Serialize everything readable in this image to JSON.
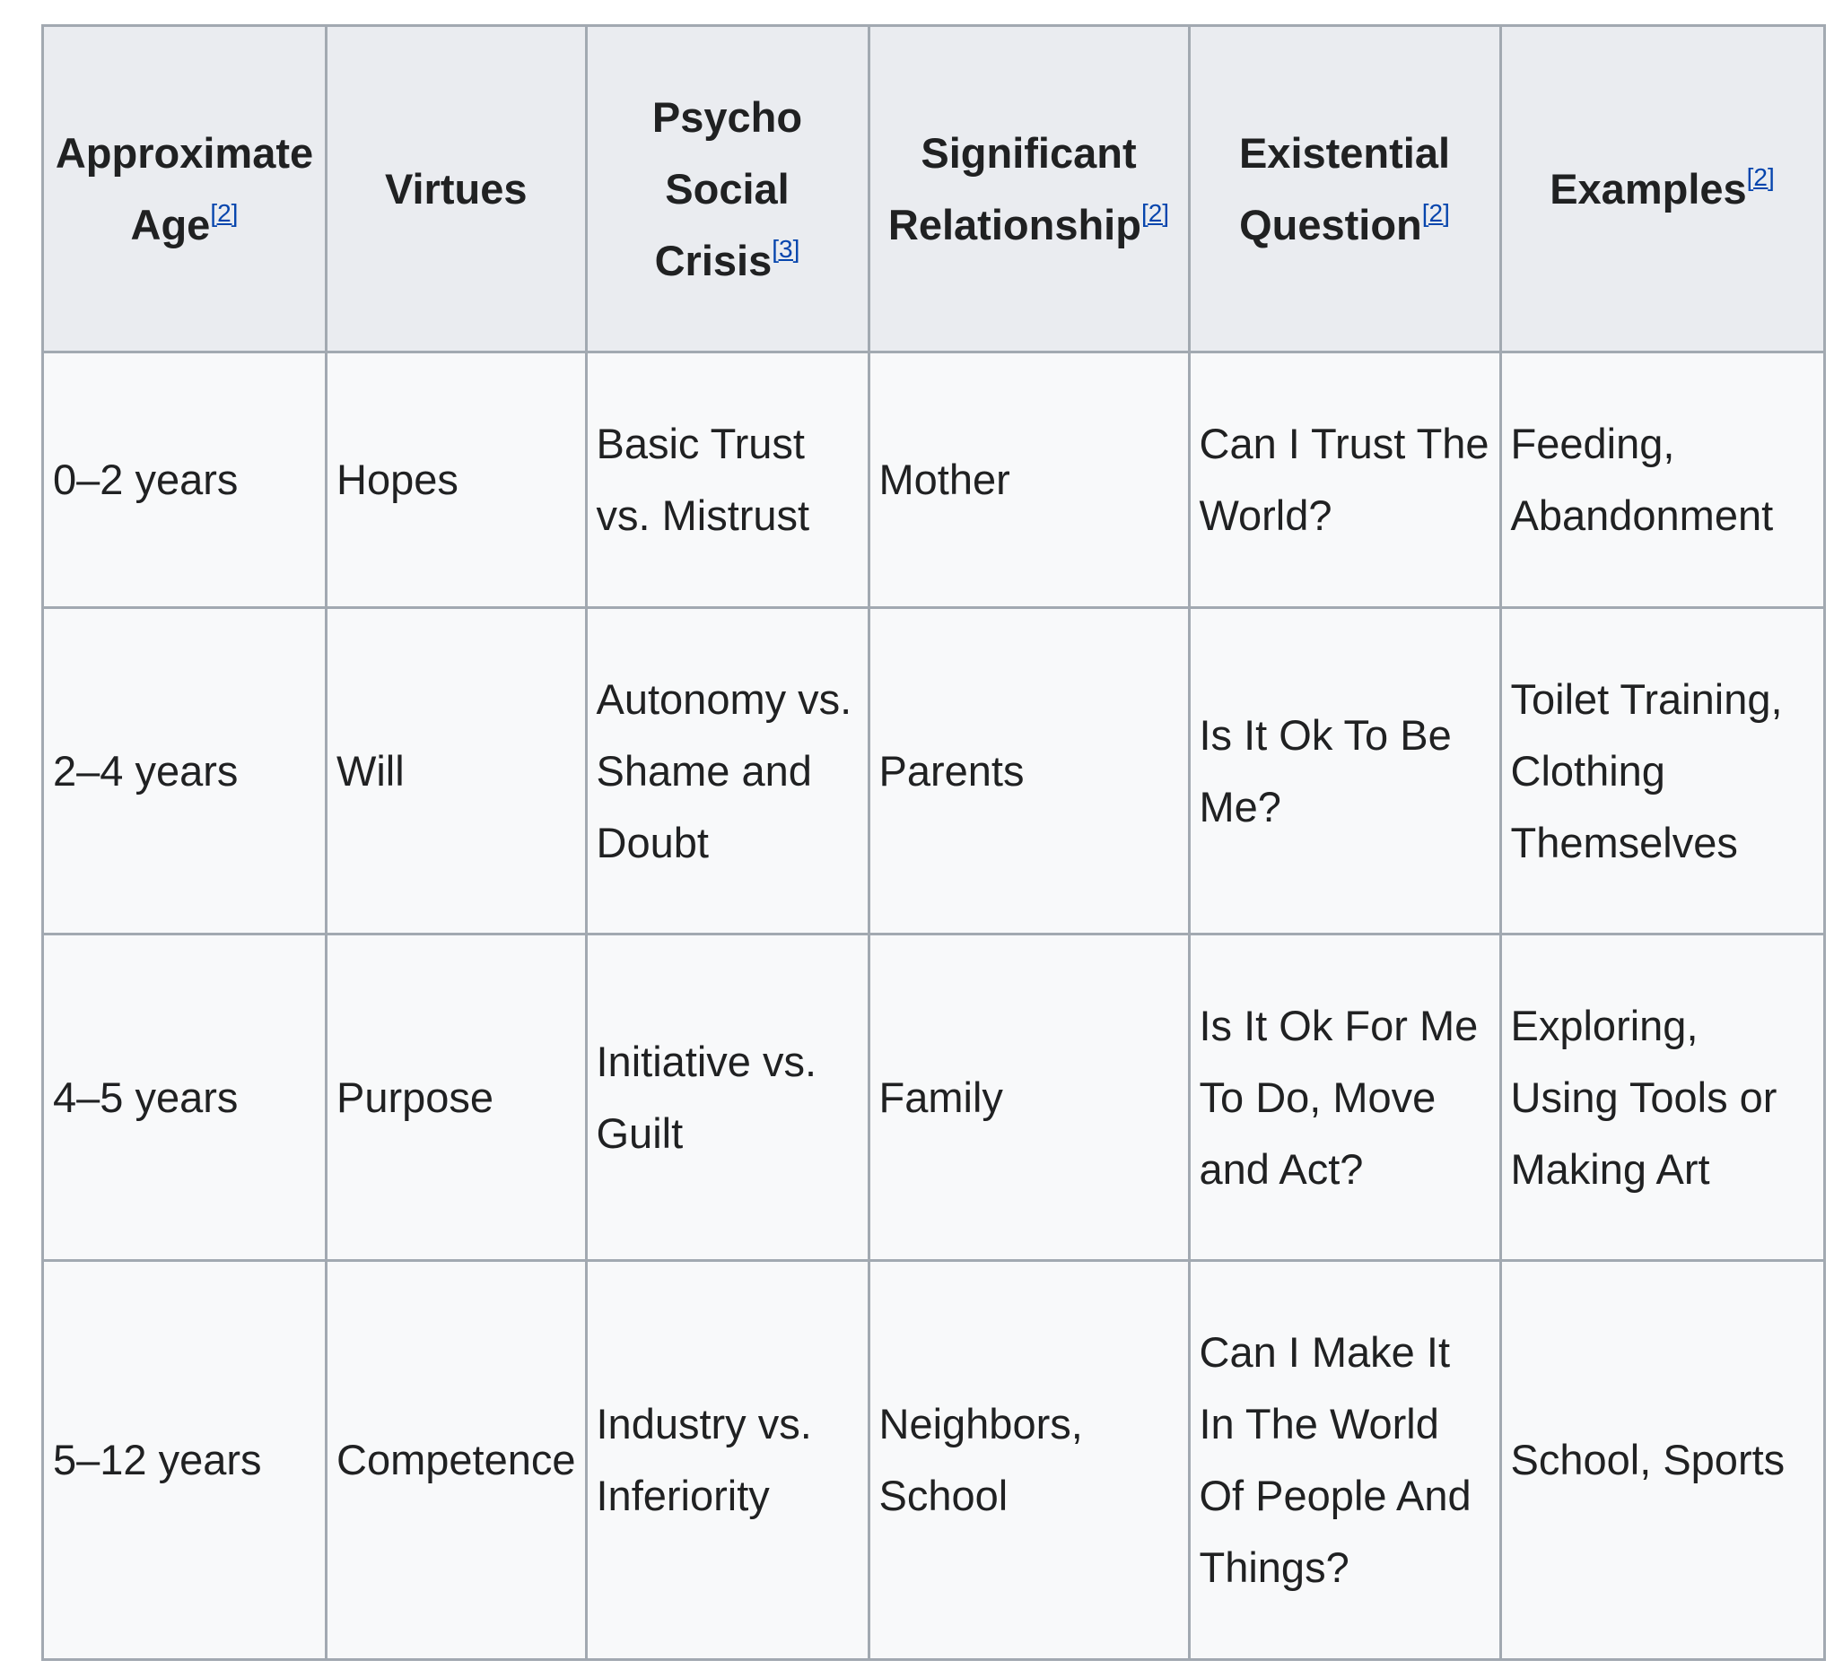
{
  "table": {
    "headers": [
      {
        "label": "Approximate Age",
        "ref": "[2]"
      },
      {
        "label": "Virtues",
        "ref": ""
      },
      {
        "label": "Psycho Social Crisis",
        "ref": "[3]"
      },
      {
        "label": "Significant Relationship",
        "ref": "[2]"
      },
      {
        "label": "Existential Question",
        "ref": "[2]"
      },
      {
        "label": "Examples",
        "ref": "[2]"
      }
    ],
    "rows": [
      [
        "0–2 years",
        "Hopes",
        "Basic Trust vs. Mistrust",
        "Mother",
        "Can I Trust The World?",
        "Feeding, Abandonment"
      ],
      [
        "2–4 years",
        "Will",
        "Autonomy vs. Shame and Doubt",
        "Parents",
        "Is It Ok To Be Me?",
        "Toilet Training, Clothing Themselves"
      ],
      [
        "4–5 years",
        "Purpose",
        "Initiative vs. Guilt",
        "Family",
        "Is It Ok For Me To Do, Move and Act?",
        "Exploring, Using Tools or Making Art"
      ],
      [
        "5–12 years",
        "Competence",
        "Industry vs. Inferiority",
        "Neighbors, School",
        "Can I Make It In The World Of People And Things?",
        "School, Sports"
      ]
    ]
  },
  "colors": {
    "header_bg": "#eaecf0",
    "cell_bg": "#f8f9fa",
    "border": "#a2a9b1",
    "link": "#0645ad"
  }
}
